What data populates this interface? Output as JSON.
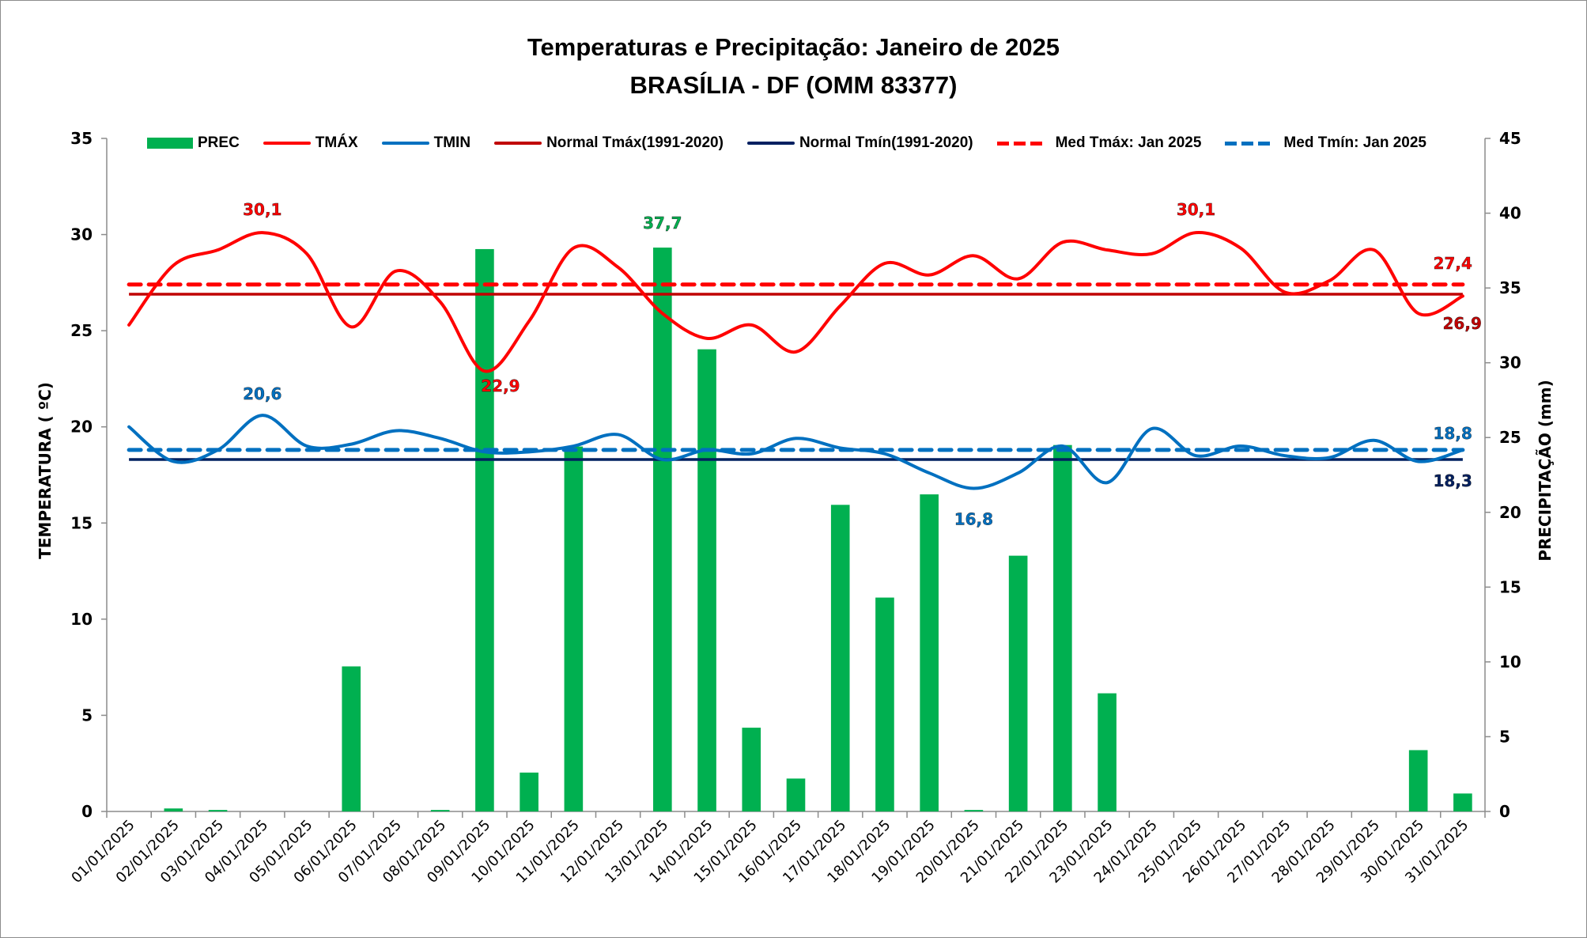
{
  "chart_data": {
    "type": "bar+line",
    "title": "Temperaturas e Precipitação: Janeiro de 2025",
    "subtitle": "BRASÍLIA - DF (OMM 83377)",
    "ylabel": "TEMPERATURA ( ºC)",
    "y2label": "PRECIPITAÇÃO (mm)",
    "ylim": [
      0,
      35
    ],
    "y2lim": [
      0,
      45
    ],
    "yticks": [
      "0",
      "5",
      "10",
      "15",
      "20",
      "25",
      "30",
      "35"
    ],
    "y2ticks": [
      "0",
      "5",
      "10",
      "15",
      "20",
      "25",
      "30",
      "35",
      "40",
      "45"
    ],
    "grid": false,
    "legend_position": "top",
    "categories": [
      "01/01/2025",
      "02/01/2025",
      "03/01/2025",
      "04/01/2025",
      "05/01/2025",
      "06/01/2025",
      "07/01/2025",
      "08/01/2025",
      "09/01/2025",
      "10/01/2025",
      "11/01/2025",
      "12/01/2025",
      "13/01/2025",
      "14/01/2025",
      "15/01/2025",
      "16/01/2025",
      "17/01/2025",
      "18/01/2025",
      "19/01/2025",
      "20/01/2025",
      "21/01/2025",
      "22/01/2025",
      "23/01/2025",
      "24/01/2025",
      "25/01/2025",
      "26/01/2025",
      "27/01/2025",
      "28/01/2025",
      "29/01/2025",
      "30/01/2025",
      "31/01/2025"
    ],
    "series": [
      {
        "name": "PREC",
        "kind": "bar",
        "axis": "right",
        "color": "#00b050",
        "values": [
          0.0,
          0.2,
          0.1,
          0.0,
          0.0,
          9.7,
          0.0,
          0.1,
          37.6,
          2.6,
          24.4,
          0.0,
          37.7,
          30.9,
          5.6,
          2.2,
          20.5,
          14.3,
          21.2,
          0.1,
          17.1,
          24.5,
          7.9,
          0.0,
          0.0,
          0.0,
          0.0,
          0.0,
          0.0,
          4.1,
          1.2
        ]
      },
      {
        "name": "TMÁX",
        "kind": "line",
        "axis": "left",
        "color": "#ff0000",
        "values": [
          25.3,
          28.4,
          29.2,
          30.1,
          29.0,
          25.2,
          28.1,
          26.5,
          22.9,
          25.5,
          29.3,
          28.3,
          25.9,
          24.6,
          25.3,
          23.9,
          26.3,
          28.5,
          27.9,
          28.9,
          27.7,
          29.6,
          29.2,
          29.0,
          30.1,
          29.3,
          27.0,
          27.6,
          29.2,
          25.9,
          26.8
        ]
      },
      {
        "name": "TMIN",
        "kind": "line",
        "axis": "left",
        "color": "#0070c0",
        "values": [
          20.0,
          18.2,
          18.8,
          20.6,
          19.0,
          19.1,
          19.8,
          19.4,
          18.7,
          18.7,
          19.0,
          19.6,
          18.3,
          18.8,
          18.6,
          19.4,
          18.9,
          18.6,
          17.6,
          16.8,
          17.6,
          19.0,
          17.1,
          19.9,
          18.5,
          19.0,
          18.5,
          18.4,
          19.3,
          18.2,
          18.8
        ]
      },
      {
        "name": "Normal Tmáx(1991-2020)",
        "kind": "hline",
        "axis": "left",
        "color": "#c00000",
        "value": 26.9
      },
      {
        "name": "Normal Tmín(1991-2020)",
        "kind": "hline",
        "axis": "left",
        "color": "#002060",
        "value": 18.3
      },
      {
        "name": "Med Tmáx: Jan 2025",
        "kind": "hline-dashed",
        "axis": "left",
        "color": "#ff0000",
        "value": 27.4
      },
      {
        "name": "Med Tmín: Jan 2025",
        "kind": "hline-dashed",
        "axis": "left",
        "color": "#0070c0",
        "value": 18.8
      }
    ],
    "annotations": [
      {
        "text": "30,1",
        "series": "TMÁX",
        "index": 3,
        "color": "#ff0000"
      },
      {
        "text": "30,1",
        "series": "TMÁX",
        "index": 24,
        "color": "#ff0000"
      },
      {
        "text": "22,9",
        "series": "TMÁX",
        "index": 8,
        "color": "#ff0000"
      },
      {
        "text": "37,7",
        "series": "PREC",
        "index": 12,
        "color": "#00b050"
      },
      {
        "text": "20,6",
        "series": "TMIN",
        "index": 3,
        "color": "#0070c0"
      },
      {
        "text": "16,8",
        "series": "TMIN",
        "index": 19,
        "color": "#0070c0"
      },
      {
        "text": "27,4",
        "series": "Med Tmáx: Jan 2025",
        "index": 30,
        "color": "#ff0000"
      },
      {
        "text": "26,9",
        "series": "Normal Tmáx(1991-2020)",
        "index": 30,
        "color": "#c00000"
      },
      {
        "text": "18,8",
        "series": "Med Tmín: Jan 2025",
        "index": 30,
        "color": "#0070c0"
      },
      {
        "text": "18,3",
        "series": "Normal Tmín(1991-2020)",
        "index": 30,
        "color": "#002060"
      }
    ]
  }
}
